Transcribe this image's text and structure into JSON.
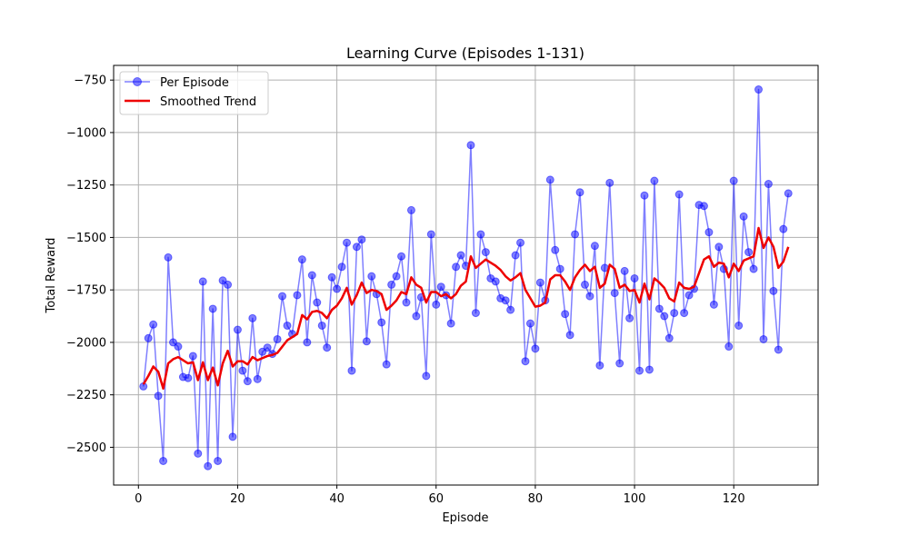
{
  "chart_data": {
    "type": "line",
    "title": "Learning Curve (Episodes 1-131)",
    "xlabel": "Episode",
    "ylabel": "Total Reward",
    "xlim": [
      -5,
      137
    ],
    "ylim": [
      -2680,
      -680
    ],
    "grid": true,
    "legend_position": "top-left",
    "x_ticks": [
      0,
      20,
      40,
      60,
      80,
      100,
      120
    ],
    "y_ticks": [
      -750,
      -1000,
      -1250,
      -1500,
      -1750,
      -2000,
      -2250,
      -2500
    ],
    "x_tick_labels": [
      "0",
      "20",
      "40",
      "60",
      "80",
      "100",
      "120"
    ],
    "y_tick_labels": [
      "−750",
      "−1000",
      "−1250",
      "−1500",
      "−1750",
      "−2000",
      "−2250",
      "−2500"
    ],
    "series": [
      {
        "name": "Per Episode",
        "color": "#0000ff",
        "marker": "circle",
        "values": [
          -2210,
          -1980,
          -1915,
          -2255,
          -2565,
          -1595,
          -2000,
          -2020,
          -2165,
          -2170,
          -2065,
          -2530,
          -1710,
          -2590,
          -1840,
          -2565,
          -1705,
          -1725,
          -2450,
          -1940,
          -2135,
          -2185,
          -1885,
          -2175,
          -2045,
          -2025,
          -2055,
          -1985,
          -1780,
          -1920,
          -1960,
          -1775,
          -1605,
          -2000,
          -1680,
          -1810,
          -1920,
          -2025,
          -1690,
          -1745,
          -1640,
          -1525,
          -2135,
          -1545,
          -1510,
          -1995,
          -1685,
          -1770,
          -1905,
          -2105,
          -1725,
          -1685,
          -1590,
          -1810,
          -1370,
          -1875,
          -1785,
          -2160,
          -1485,
          -1820,
          -1735,
          -1775,
          -1910,
          -1640,
          -1585,
          -1635,
          -1060,
          -1860,
          -1485,
          -1570,
          -1695,
          -1710,
          -1790,
          -1800,
          -1845,
          -1585,
          -1525,
          -2090,
          -1910,
          -2030,
          -1715,
          -1800,
          -1225,
          -1560,
          -1650,
          -1865,
          -1965,
          -1485,
          -1285,
          -1725,
          -1780,
          -1540,
          -2110,
          -1645,
          -1240,
          -1765,
          -2100,
          -1660,
          -1885,
          -1695,
          -2135,
          -1300,
          -2130,
          -1230,
          -1840,
          -1875,
          -1980,
          -1860,
          -1295,
          -1860,
          -1775,
          -1745,
          -1345,
          -1350,
          -1475,
          -1820,
          -1545,
          -1650,
          -2020,
          -1230,
          -1920,
          -1400,
          -1570,
          -1650,
          -795,
          -1985,
          -1245,
          -1755,
          -2035,
          -1460,
          -1290
        ]
      },
      {
        "name": "Smoothed Trend",
        "color": "#ee0000",
        "values": [
          -2200,
          -2160,
          -2115,
          -2140,
          -2220,
          -2100,
          -2080,
          -2070,
          -2085,
          -2100,
          -2095,
          -2180,
          -2095,
          -2180,
          -2120,
          -2205,
          -2100,
          -2040,
          -2115,
          -2090,
          -2090,
          -2105,
          -2070,
          -2085,
          -2075,
          -2065,
          -2060,
          -2050,
          -2020,
          -1990,
          -1975,
          -1960,
          -1870,
          -1890,
          -1855,
          -1850,
          -1860,
          -1885,
          -1845,
          -1825,
          -1790,
          -1740,
          -1820,
          -1775,
          -1715,
          -1765,
          -1750,
          -1755,
          -1770,
          -1845,
          -1825,
          -1800,
          -1760,
          -1770,
          -1690,
          -1725,
          -1740,
          -1810,
          -1760,
          -1760,
          -1780,
          -1770,
          -1790,
          -1770,
          -1730,
          -1710,
          -1590,
          -1645,
          -1625,
          -1605,
          -1620,
          -1635,
          -1655,
          -1685,
          -1705,
          -1690,
          -1670,
          -1750,
          -1790,
          -1830,
          -1825,
          -1810,
          -1700,
          -1680,
          -1680,
          -1710,
          -1750,
          -1690,
          -1655,
          -1630,
          -1660,
          -1640,
          -1740,
          -1720,
          -1630,
          -1650,
          -1740,
          -1725,
          -1755,
          -1750,
          -1810,
          -1720,
          -1795,
          -1695,
          -1715,
          -1740,
          -1790,
          -1805,
          -1715,
          -1740,
          -1745,
          -1735,
          -1670,
          -1605,
          -1590,
          -1640,
          -1620,
          -1625,
          -1690,
          -1625,
          -1660,
          -1610,
          -1600,
          -1590,
          -1455,
          -1550,
          -1500,
          -1545,
          -1645,
          -1615,
          -1545
        ]
      }
    ]
  }
}
